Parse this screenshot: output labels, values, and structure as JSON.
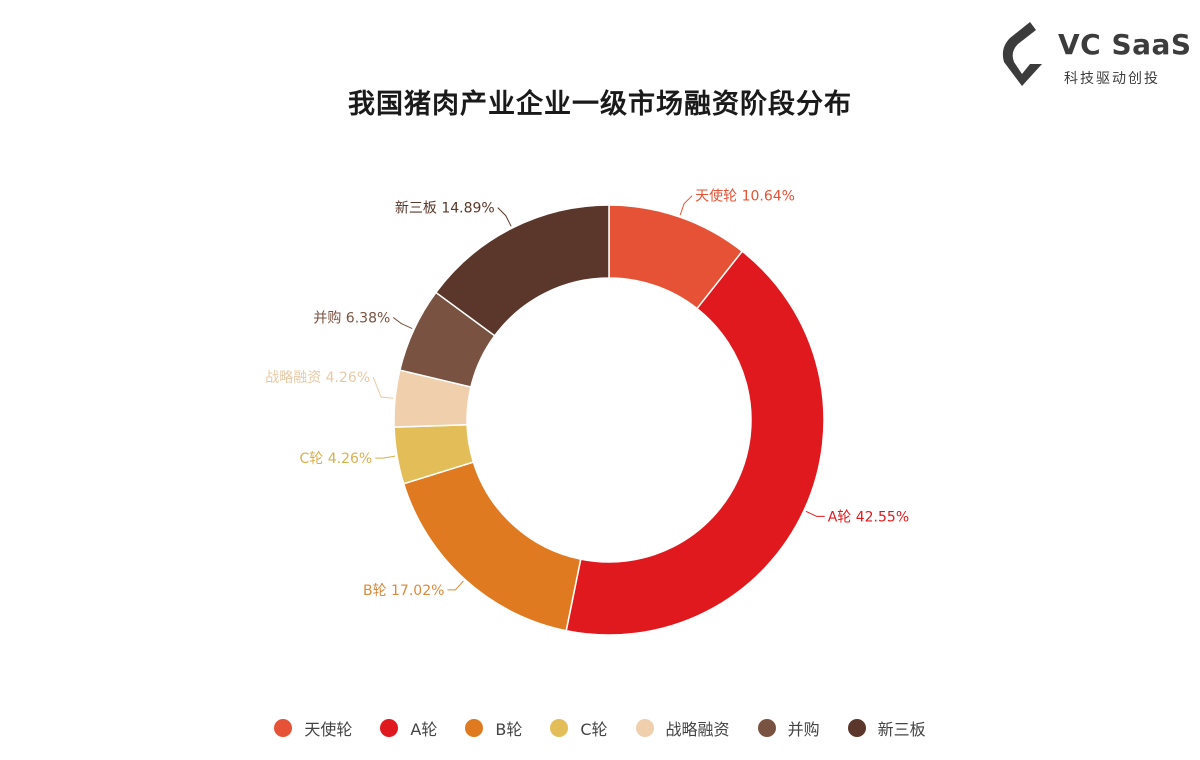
{
  "logo": {
    "brand": "VC SaaS",
    "tagline": "科技驱动创投"
  },
  "chart_data": {
    "type": "pie",
    "donut": true,
    "title": "我国猪肉产业企业一级市场融资阶段分布",
    "categories": [
      "天使轮",
      "A轮",
      "B轮",
      "C轮",
      "战略融资",
      "并购",
      "新三板"
    ],
    "values": [
      10.64,
      42.55,
      17.02,
      4.26,
      4.26,
      6.38,
      14.89
    ],
    "unit": "%",
    "data_labels": [
      "天使轮 10.64%",
      "A轮 42.55%",
      "B轮 17.02%",
      "C轮 4.26%",
      "战略融资 4.26%",
      "并购 6.38%",
      "新三板 14.89%"
    ],
    "colors": [
      "#e65236",
      "#e0191e",
      "#e07a20",
      "#e3bd58",
      "#f0cfad",
      "#7a5241",
      "#5a372a"
    ],
    "label_colors": [
      "#e65236",
      "#e0191e",
      "#d98a3c",
      "#d9b04e",
      "#e8c9a6",
      "#7a5241",
      "#5a372a"
    ],
    "legend": {
      "position": "bottom"
    }
  }
}
